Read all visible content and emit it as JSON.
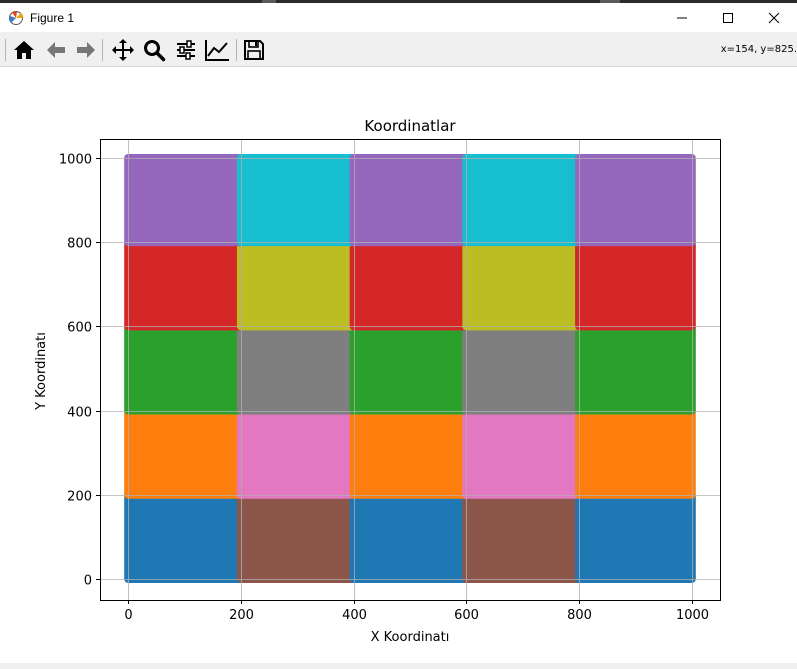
{
  "window": {
    "title": "Figure 1",
    "controls": [
      "minimize-icon",
      "maximize-icon",
      "close-icon"
    ]
  },
  "toolbar": {
    "buttons": [
      {
        "name": "home-button",
        "icon": "home-icon"
      },
      {
        "name": "back-button",
        "icon": "arrow-left-icon"
      },
      {
        "name": "forward-button",
        "icon": "arrow-right-icon"
      },
      {
        "name": "pan-button",
        "icon": "move-icon"
      },
      {
        "name": "zoom-button",
        "icon": "magnifier-icon"
      },
      {
        "name": "configure-subplots-button",
        "icon": "sliders-icon"
      },
      {
        "name": "edit-axis-button",
        "icon": "line-chart-icon"
      },
      {
        "name": "save-button",
        "icon": "floppy-disk-icon"
      }
    ],
    "coordinate_readout": "x=154, y=825."
  },
  "chart_data": {
    "type": "scatter",
    "title": "Koordinatlar",
    "xlabel": "X Koordinatı",
    "ylabel": "Y Koordinatı",
    "xlim": [
      -50,
      1050
    ],
    "ylim": [
      -50,
      1045
    ],
    "xticks": [
      0,
      200,
      400,
      600,
      800,
      1000
    ],
    "yticks": [
      0,
      200,
      400,
      600,
      800,
      1000
    ],
    "grid": true,
    "legend": "none",
    "description": "Dense scatter of points on 0–1000 × 0–1000, forming a 5×5 grid of colored 200×200 blocks",
    "block_size": 200,
    "x_edges": [
      0,
      200,
      400,
      600,
      800,
      1000
    ],
    "y_edges": [
      0,
      200,
      400,
      600,
      800,
      1000
    ],
    "block_colors_by_row_from_bottom": [
      [
        "#1f77b4",
        "#8c564b",
        "#1f77b4",
        "#8c564b",
        "#1f77b4"
      ],
      [
        "#ff7f0e",
        "#e377c2",
        "#ff7f0e",
        "#e377c2",
        "#ff7f0e"
      ],
      [
        "#2ca02c",
        "#7f7f7f",
        "#2ca02c",
        "#7f7f7f",
        "#2ca02c"
      ],
      [
        "#d62728",
        "#bcbd22",
        "#d62728",
        "#bcbd22",
        "#d62728"
      ],
      [
        "#9467bd",
        "#17becf",
        "#9467bd",
        "#17becf",
        "#9467bd"
      ]
    ]
  }
}
